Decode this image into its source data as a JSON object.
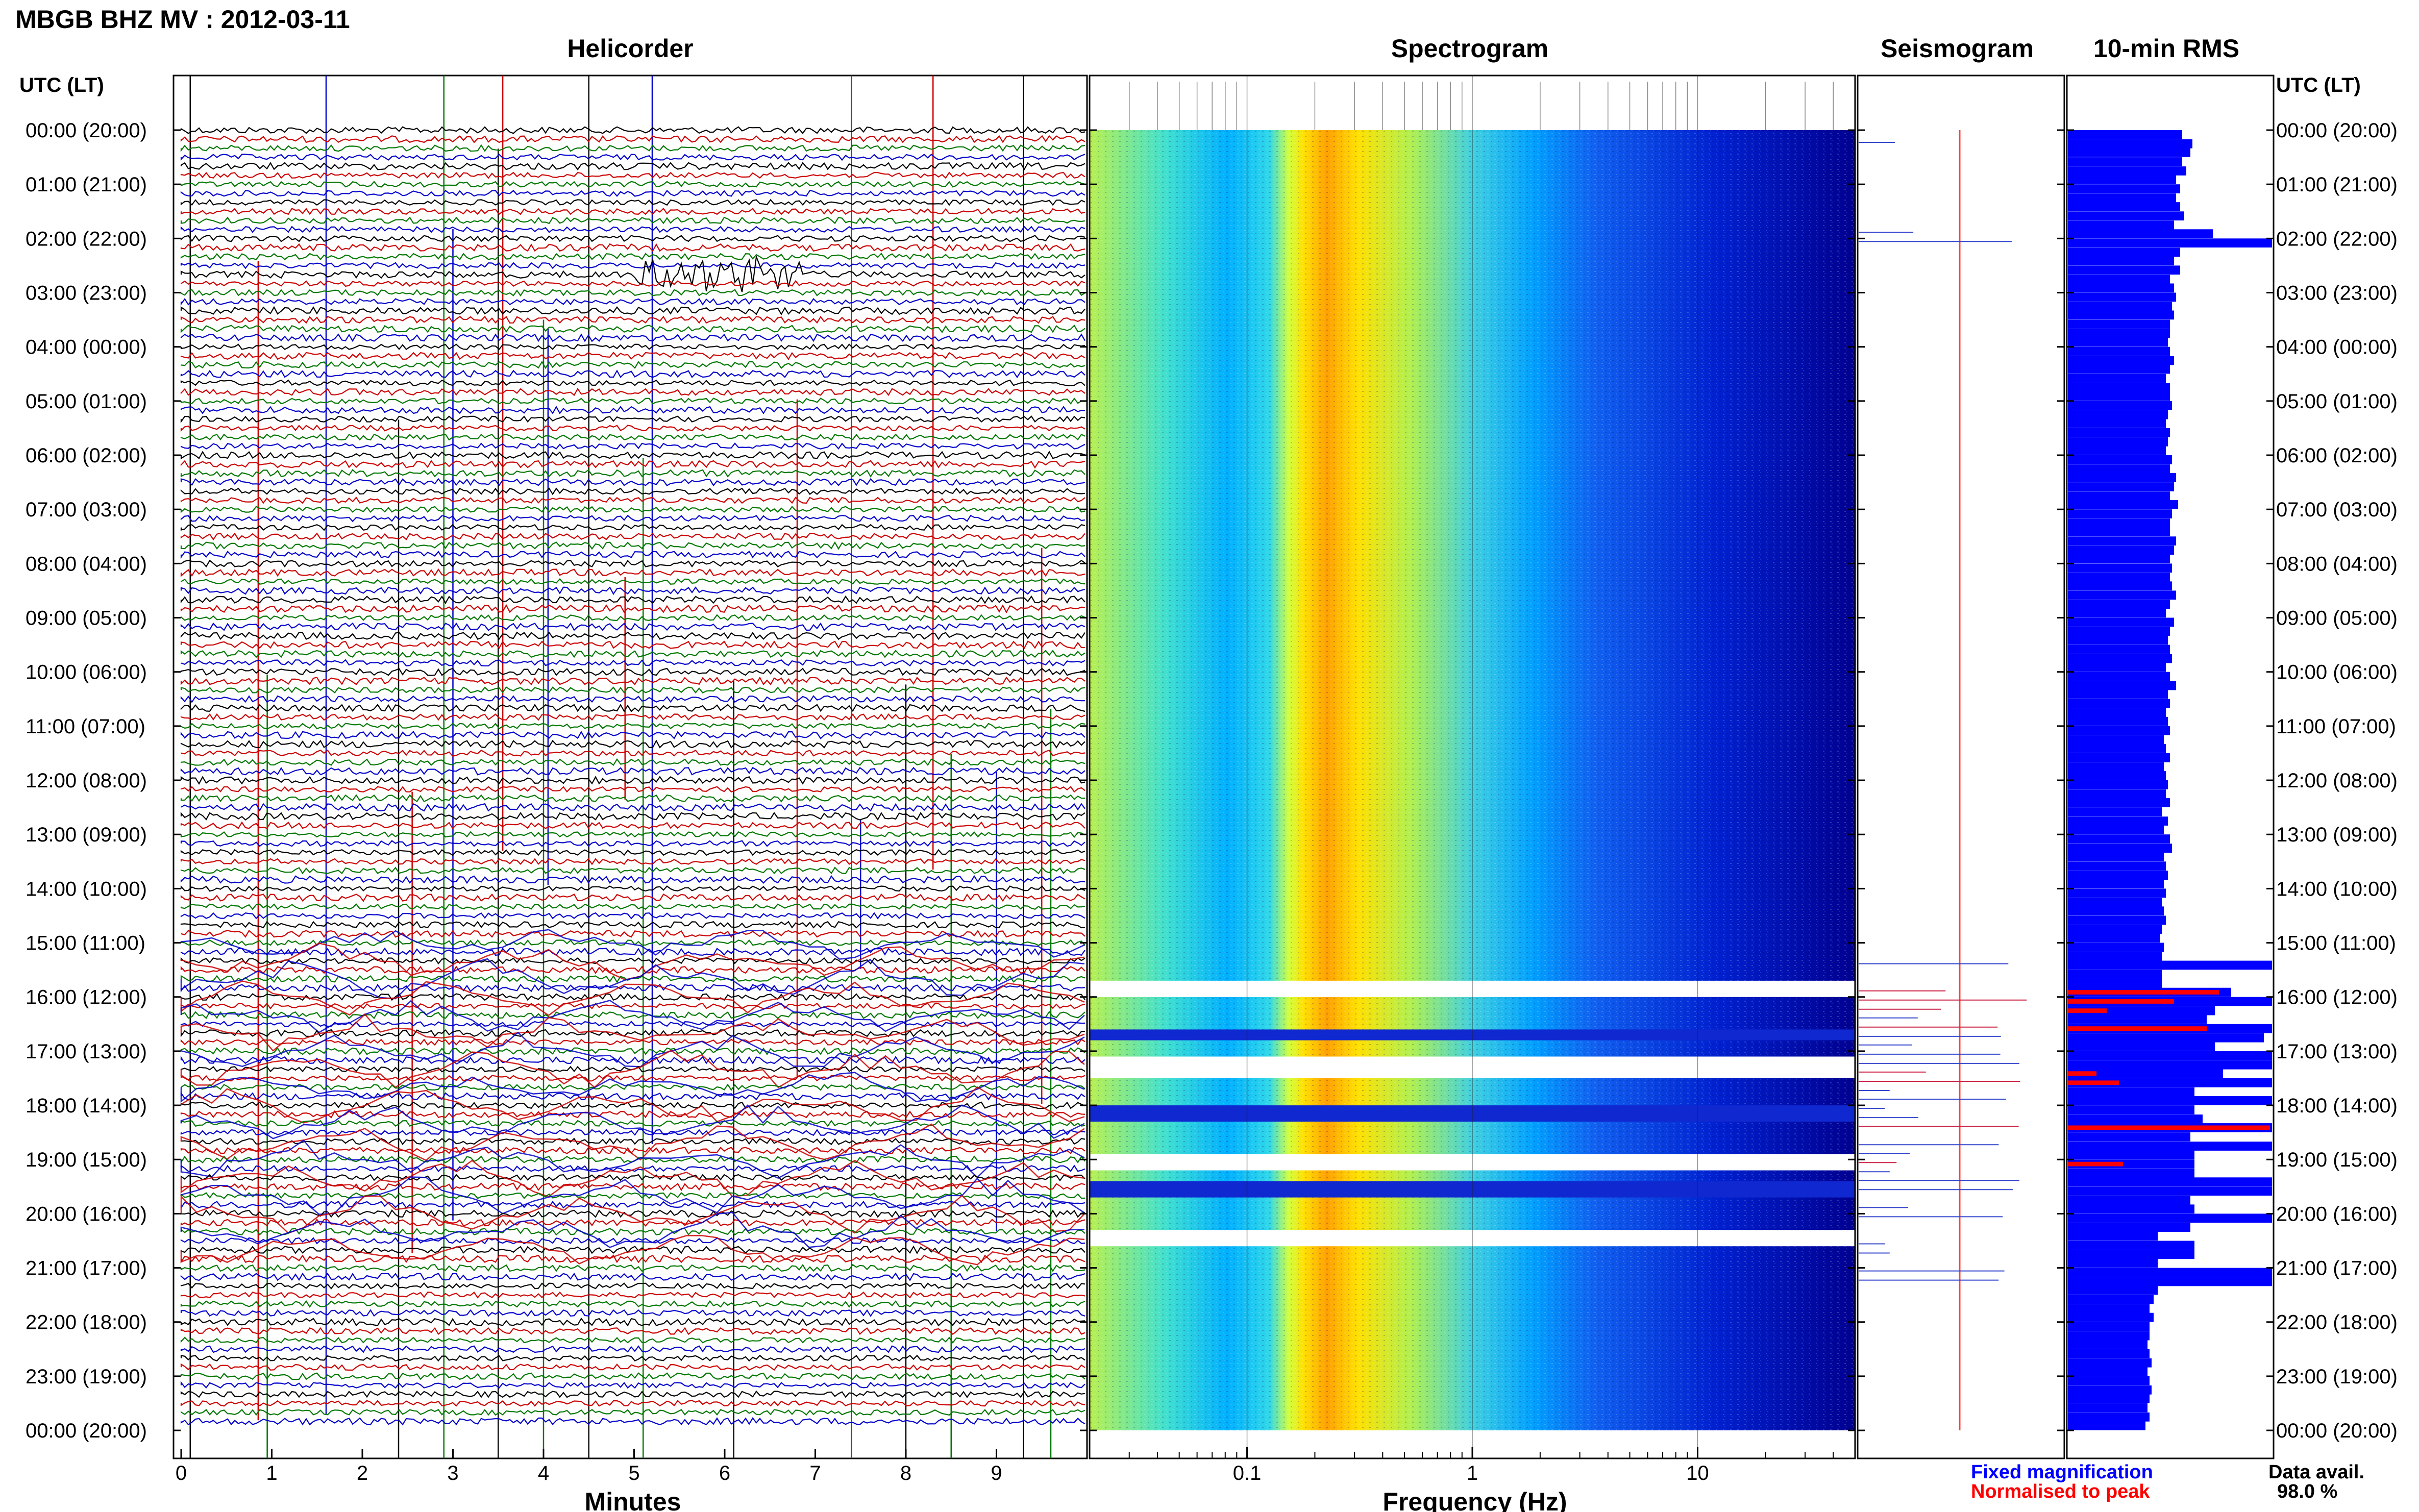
{
  "header": {
    "title": "MBGB BHZ MV : 2012-03-11"
  },
  "panels": {
    "helicorder": "Helicorder",
    "spectrogram": "Spectrogram",
    "seismogram": "Seismogram",
    "rms": "10-min RMS"
  },
  "time_axis": {
    "label": "UTC (LT)",
    "rows": [
      "00:00 (20:00)",
      "01:00 (21:00)",
      "02:00 (22:00)",
      "03:00 (23:00)",
      "04:00 (00:00)",
      "05:00 (01:00)",
      "06:00 (02:00)",
      "07:00 (03:00)",
      "08:00 (04:00)",
      "09:00 (05:00)",
      "10:00 (06:00)",
      "11:00 (07:00)",
      "12:00 (08:00)",
      "13:00 (09:00)",
      "14:00 (10:00)",
      "15:00 (11:00)",
      "16:00 (12:00)",
      "17:00 (13:00)",
      "18:00 (14:00)",
      "19:00 (15:00)",
      "20:00 (16:00)",
      "21:00 (17:00)",
      "22:00 (18:00)",
      "23:00 (19:00)",
      "00:00 (20:00)"
    ]
  },
  "x_axes": {
    "minutes_label": "Minutes",
    "minutes_ticks": [
      "0",
      "1",
      "2",
      "3",
      "4",
      "5",
      "6",
      "7",
      "8",
      "9"
    ],
    "frequency_label": "Frequency (Hz)",
    "frequency_ticks": [
      "0.1",
      "1",
      "10"
    ]
  },
  "legend": {
    "fixed": "Fixed magnification",
    "normalised": "Normalised to peak",
    "fixed_color": "#0000ff",
    "normalised_color": "#ff0000"
  },
  "availability": {
    "label": "Data avail.",
    "value": "98.0 %"
  },
  "colors": {
    "trace_cycle": [
      "#000000",
      "#cc0000",
      "#007700",
      "#0000cc"
    ],
    "rms_fixed": "#0000ff",
    "rms_normalised": "#ff0000",
    "spectrogram_scale": [
      "#000080",
      "#0000ff",
      "#00b0ff",
      "#40e0d0",
      "#c0ff40",
      "#ffff00",
      "#ff9000"
    ]
  },
  "chart_data": {
    "type": "heatmap",
    "helicorder": {
      "x_unit": "minutes",
      "xlim": [
        0,
        10
      ],
      "rows_per_hour": 6,
      "hours": 24,
      "disturbed_hours": [
        15,
        16,
        17,
        18,
        19,
        20
      ],
      "event_hours": [
        2
      ]
    },
    "spectrogram": {
      "x_scale": "log",
      "xlim": [
        0.02,
        50
      ],
      "peak_frequency_hz": 0.25,
      "gap_hours": [
        [
          15.7,
          16.0
        ],
        [
          16.6,
          16.8
        ],
        [
          17.1,
          17.5
        ],
        [
          18.0,
          18.3
        ],
        [
          18.9,
          19.2
        ],
        [
          19.4,
          19.7
        ],
        [
          20.3,
          20.6
        ]
      ]
    },
    "rms_10min": {
      "units": "relative",
      "hours": [
        0,
        0.17,
        0.33,
        0.5,
        0.67,
        0.83,
        1,
        1.17,
        1.33,
        1.5,
        1.67,
        1.83,
        2,
        2.17,
        2.33,
        2.5,
        2.67,
        2.83,
        3,
        3.17,
        3.33,
        3.5,
        3.67,
        3.83,
        4,
        4.17,
        4.33,
        4.5,
        4.67,
        4.83,
        5,
        5.17,
        5.33,
        5.5,
        5.67,
        5.83,
        6,
        6.17,
        6.33,
        6.5,
        6.67,
        6.83,
        7,
        7.17,
        7.33,
        7.5,
        7.67,
        7.83,
        8,
        8.17,
        8.33,
        8.5,
        8.67,
        8.83,
        9,
        9.17,
        9.33,
        9.5,
        9.67,
        9.83,
        10,
        10.17,
        10.33,
        10.5,
        10.67,
        10.83,
        11,
        11.17,
        11.33,
        11.5,
        11.67,
        11.83,
        12,
        12.17,
        12.33,
        12.5,
        12.67,
        12.83,
        13,
        13.17,
        13.33,
        13.5,
        13.67,
        13.83,
        14,
        14.17,
        14.33,
        14.5,
        14.67,
        14.83,
        15,
        15.17,
        15.33,
        15.5,
        15.67,
        15.83,
        16,
        16.17,
        16.33,
        16.5,
        16.67,
        16.83,
        17,
        17.17,
        17.33,
        17.5,
        17.67,
        17.83,
        18,
        18.17,
        18.33,
        18.5,
        18.67,
        18.83,
        19,
        19.17,
        19.33,
        19.5,
        19.67,
        19.83,
        20,
        20.17,
        20.33,
        20.5,
        20.67,
        20.83,
        21,
        21.17,
        21.33,
        21.5,
        21.67,
        21.83,
        22,
        22.17,
        22.33,
        22.5,
        22.67,
        22.83,
        23,
        23.17,
        23.33,
        23.5,
        23.67,
        23.83
      ],
      "fixed": [
        0.56,
        0.61,
        0.6,
        0.56,
        0.58,
        0.53,
        0.55,
        0.53,
        0.55,
        0.57,
        0.52,
        0.71,
        1.0,
        0.55,
        0.52,
        0.55,
        0.5,
        0.52,
        0.53,
        0.51,
        0.52,
        0.5,
        0.5,
        0.49,
        0.5,
        0.52,
        0.5,
        0.48,
        0.5,
        0.5,
        0.51,
        0.49,
        0.48,
        0.5,
        0.49,
        0.48,
        0.51,
        0.5,
        0.53,
        0.52,
        0.5,
        0.54,
        0.51,
        0.5,
        0.5,
        0.53,
        0.52,
        0.5,
        0.51,
        0.5,
        0.51,
        0.53,
        0.5,
        0.48,
        0.52,
        0.5,
        0.49,
        0.5,
        0.51,
        0.48,
        0.5,
        0.53,
        0.49,
        0.5,
        0.48,
        0.49,
        0.5,
        0.47,
        0.48,
        0.5,
        0.47,
        0.48,
        0.49,
        0.48,
        0.5,
        0.46,
        0.49,
        0.47,
        0.5,
        0.51,
        0.47,
        0.48,
        0.49,
        0.47,
        0.48,
        0.46,
        0.47,
        0.48,
        0.46,
        0.45,
        0.47,
        0.46,
        1.0,
        0.46,
        0.46,
        0.8,
        1.0,
        0.72,
        0.68,
        1.0,
        0.96,
        0.72,
        1.0,
        1.0,
        0.76,
        1.0,
        0.62,
        1.0,
        0.62,
        0.66,
        1.0,
        0.6,
        1.0,
        0.62,
        0.62,
        0.62,
        1.0,
        1.0,
        0.6,
        0.62,
        1.0,
        0.6,
        0.44,
        0.62,
        0.62,
        0.44,
        1.0,
        1.0,
        0.44,
        0.42,
        0.4,
        0.42,
        0.4,
        0.4,
        0.39,
        0.4,
        0.41,
        0.39,
        0.4,
        0.41,
        0.4,
        0.39,
        0.4,
        0.38,
        0.39,
        0.38
      ],
      "normalised": [
        0,
        0,
        0,
        0,
        0,
        0,
        0,
        0,
        0,
        0,
        0,
        0,
        0,
        0,
        0,
        0,
        0,
        0,
        0,
        0,
        0,
        0,
        0,
        0,
        0,
        0,
        0,
        0,
        0,
        0,
        0,
        0,
        0,
        0,
        0,
        0,
        0,
        0,
        0,
        0,
        0,
        0,
        0,
        0,
        0,
        0,
        0,
        0,
        0,
        0,
        0,
        0,
        0,
        0,
        0,
        0,
        0,
        0,
        0,
        0,
        0,
        0,
        0,
        0,
        0,
        0,
        0,
        0,
        0,
        0,
        0,
        0,
        0,
        0,
        0,
        0,
        0,
        0,
        0,
        0,
        0,
        0,
        0,
        0,
        0,
        0,
        0,
        0,
        0,
        0,
        0,
        0,
        0,
        0,
        0,
        0.74,
        0.52,
        0.19,
        0,
        0.68,
        0,
        0,
        0,
        0,
        0.14,
        0.25,
        0,
        0,
        0,
        0,
        0.99,
        0,
        0,
        0,
        0.27,
        0,
        0,
        0,
        0,
        0,
        0,
        0,
        0,
        0,
        0,
        0,
        0,
        0,
        0,
        0,
        0,
        0,
        0,
        0,
        0,
        0,
        0,
        0,
        0,
        0,
        0,
        0,
        0,
        0
      ]
    }
  }
}
